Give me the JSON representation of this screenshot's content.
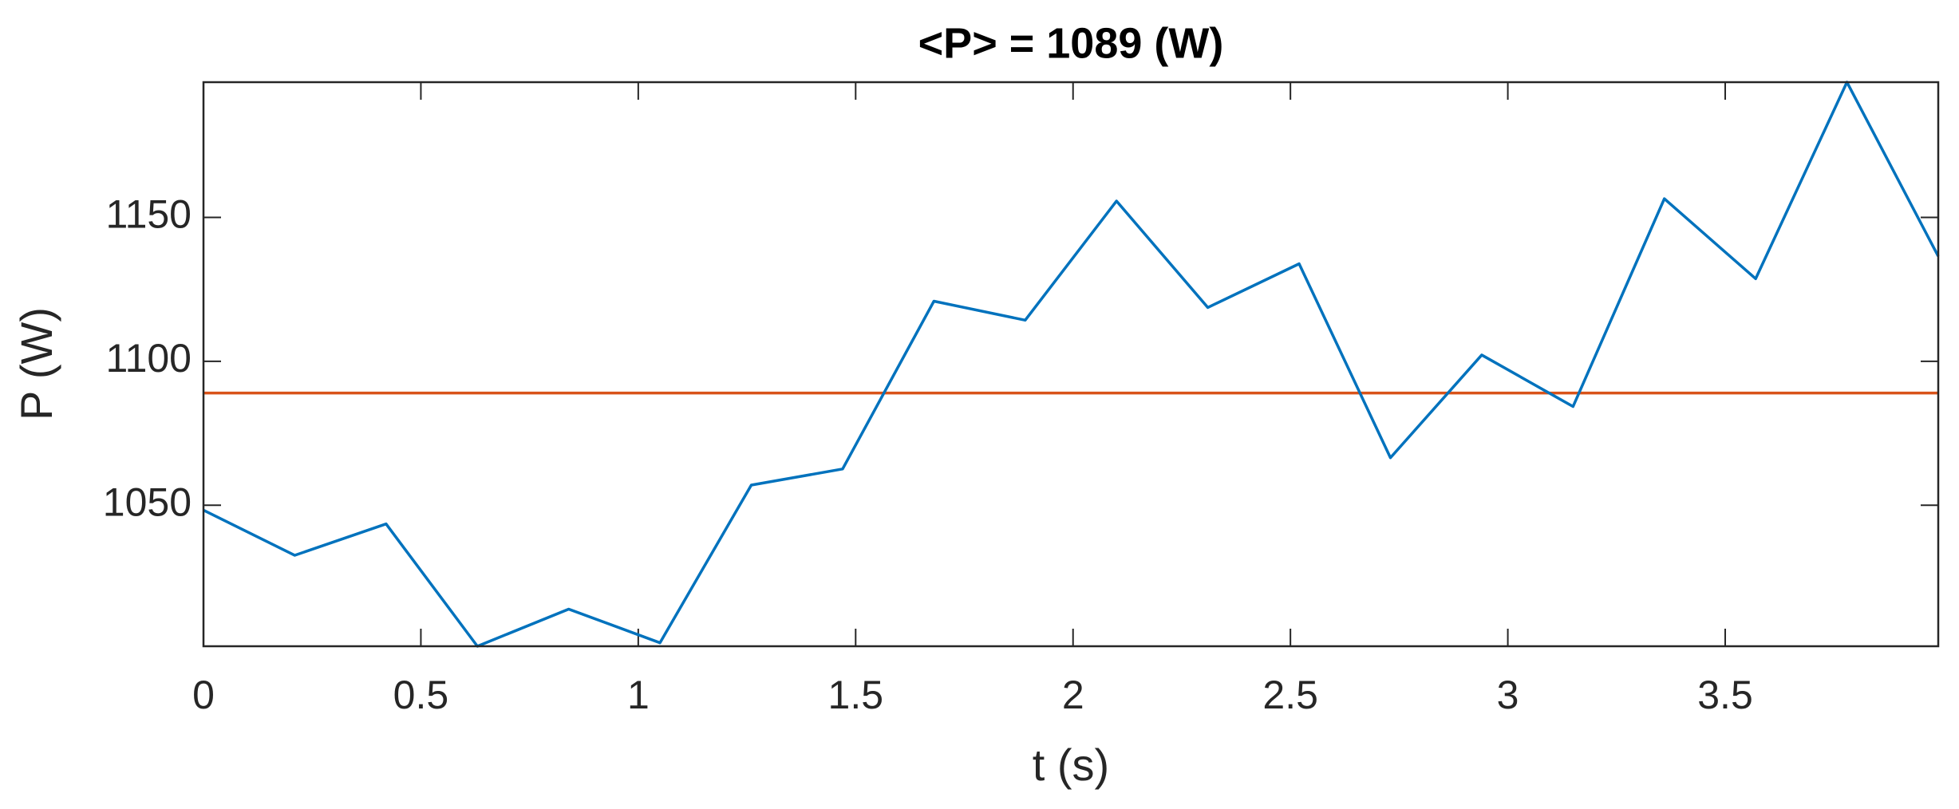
{
  "chart_data": {
    "type": "line",
    "title": "<P> = 1089 (W)",
    "xlabel": "t (s)",
    "ylabel": "P (W)",
    "x": [
      0,
      0.21,
      0.42,
      0.63,
      0.84,
      1.05,
      1.26,
      1.47,
      1.68,
      1.89,
      2.1,
      2.31,
      2.52,
      2.73,
      2.94,
      3.15,
      3.36,
      3.57,
      3.78,
      3.99
    ],
    "series": [
      {
        "color": "#0072bd",
        "values": [
          1048.3,
          1032.6,
          1043.5,
          1001,
          1013.9,
          1002.2,
          1057,
          1062.6,
          1120.9,
          1114.3,
          1155.7,
          1118.7,
          1133.9,
          1066.5,
          1102.2,
          1084.3,
          1156.5,
          1128.7,
          1197,
          1136.5
        ]
      }
    ],
    "reference_line": {
      "value": 1089,
      "color": "#d95319"
    },
    "xlim": [
      0,
      3.99
    ],
    "xticks": [
      0,
      0.5,
      1,
      1.5,
      2,
      2.5,
      3,
      3.5
    ],
    "ylim": [
      1001,
      1197
    ],
    "yticks": [
      1050,
      1100,
      1150
    ],
    "grid": false
  }
}
